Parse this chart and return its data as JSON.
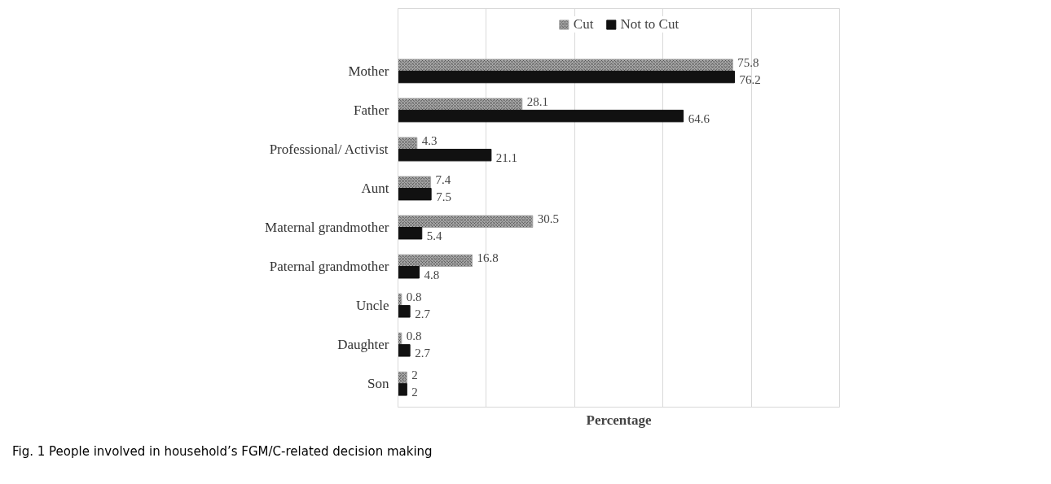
{
  "chart_data": {
    "type": "bar",
    "orientation": "horizontal",
    "categories": [
      "Mother",
      "Father",
      "Professional/ Activist",
      "Aunt",
      "Maternal grandmother",
      "Paternal grandmother",
      "Uncle",
      "Daughter",
      "Son"
    ],
    "series": [
      {
        "name": "Cut",
        "color": "#a6a6a6",
        "values": [
          75.8,
          28.1,
          4.3,
          7.4,
          30.5,
          16.8,
          0.8,
          0.8,
          2
        ]
      },
      {
        "name": "Not to Cut",
        "color": "#111111",
        "values": [
          76.2,
          64.6,
          21.1,
          7.5,
          5.4,
          4.8,
          2.7,
          2.7,
          2
        ]
      }
    ],
    "xlim": [
      0,
      100
    ],
    "xticks": [
      {
        "value": 0,
        "label": null
      },
      {
        "value": 20,
        "label": null
      },
      {
        "value": 40,
        "label": null
      },
      {
        "value": 60,
        "label": null
      },
      {
        "value": 80,
        "label": null
      },
      {
        "value": 100,
        "label": null
      }
    ],
    "xlabel": "Percentage",
    "grid": "x",
    "legend": "top",
    "tick_labels": "y",
    "data_labels": true,
    "annotations": [
      "Fig. 1 People involved in household’s FGM/C-related decision making"
    ]
  }
}
